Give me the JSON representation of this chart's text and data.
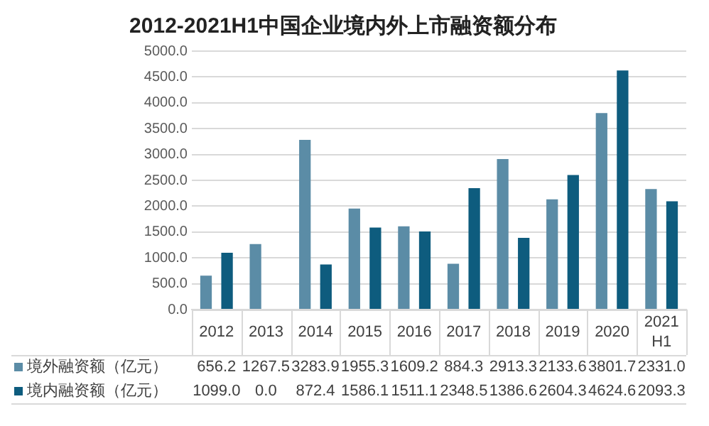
{
  "chart_data": {
    "type": "bar",
    "title": "2012-2021H1中国企业境内外上市融资额分布",
    "categories": [
      "2012",
      "2013",
      "2014",
      "2015",
      "2016",
      "2017",
      "2018",
      "2019",
      "2020",
      "2021H1"
    ],
    "series": [
      {
        "name": "境外融资额（亿元）",
        "color": "#5b8ca6",
        "values": [
          656.2,
          1267.5,
          3283.9,
          1955.3,
          1609.2,
          884.3,
          2913.3,
          2133.6,
          3801.7,
          2331.0
        ],
        "value_labels": [
          "656.2",
          "1267.5",
          "3283.9",
          "1955.3",
          "1609.2",
          "884.3",
          "2913.3",
          "2133.6",
          "3801.7",
          "2331.0"
        ]
      },
      {
        "name": "境内融资额（亿元）",
        "color": "#0e5c7e",
        "values": [
          1099.0,
          0.0,
          872.4,
          1586.1,
          1511.1,
          2348.5,
          1386.6,
          2604.3,
          4624.6,
          2093.3
        ],
        "value_labels": [
          "1099.0",
          "0.0",
          "872.4",
          "1586.1",
          "1511.1",
          "2348.5",
          "1386.6",
          "2604.3",
          "4624.6",
          "2093.3"
        ]
      }
    ],
    "ylim": [
      0,
      5000
    ],
    "yticks": [
      {
        "value": 0,
        "label": "0.0"
      },
      {
        "value": 500,
        "label": "500.0"
      },
      {
        "value": 1000,
        "label": "1000.0"
      },
      {
        "value": 1500,
        "label": "1500.0"
      },
      {
        "value": 2000,
        "label": "2000.0"
      },
      {
        "value": 2500,
        "label": "2500.0"
      },
      {
        "value": 3000,
        "label": "3000.0"
      },
      {
        "value": 3500,
        "label": "3500.0"
      },
      {
        "value": 4000,
        "label": "4000.0"
      },
      {
        "value": 4500,
        "label": "4500.0"
      },
      {
        "value": 5000,
        "label": "5000.0"
      }
    ],
    "grid": "y",
    "legend": "bottom"
  }
}
